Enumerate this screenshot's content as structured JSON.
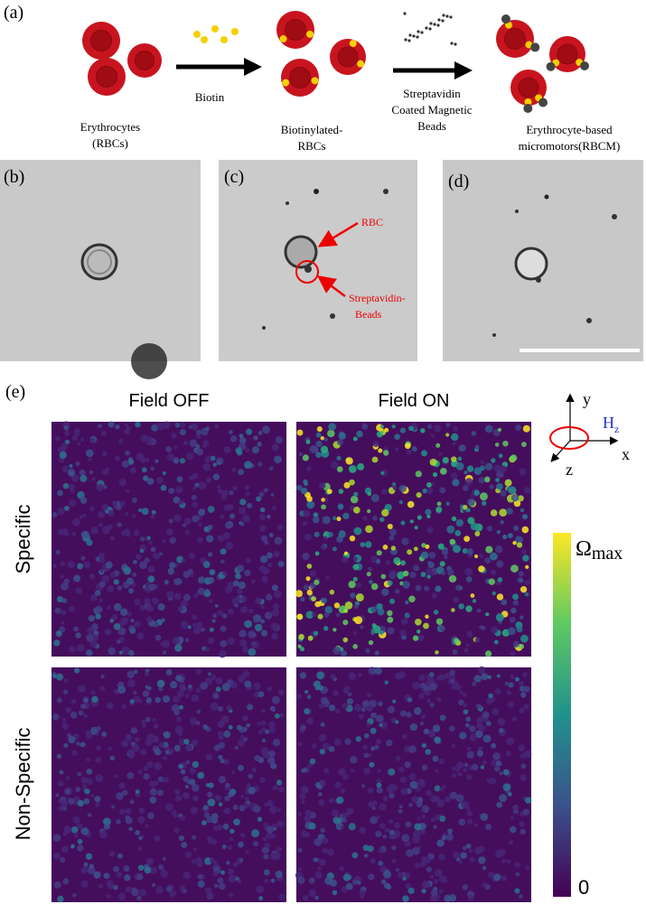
{
  "panel_a": {
    "label": "(a)",
    "reagent_1": "Biotin",
    "reagent_2": [
      "Streptavidin",
      "Coated Magnetic",
      "Beads"
    ],
    "stage_1": [
      "Erythrocytes",
      "(RBCs)"
    ],
    "stage_2": [
      "Biotinylated-",
      "RBCs"
    ],
    "stage_3": [
      "Erythrocyte-based",
      "micromotors(RBCM)"
    ]
  },
  "panel_b": {
    "label": "(b)"
  },
  "panel_c": {
    "label": "(c)",
    "annotation_1": "RBC",
    "annotation_2": [
      "Streptavidin-",
      "Beads"
    ]
  },
  "panel_d": {
    "label": "(d)"
  },
  "panel_e": {
    "label": "(e)",
    "columns": [
      "Field OFF",
      "Field ON"
    ],
    "rows": [
      "Specific",
      "Non-Specific"
    ],
    "axes": {
      "y": "y",
      "x": "x",
      "z": "z",
      "field": "H",
      "field_sub": "z"
    },
    "colorbar": {
      "max_symbol": "Ω",
      "max_sub": "max",
      "min": "0"
    }
  }
}
